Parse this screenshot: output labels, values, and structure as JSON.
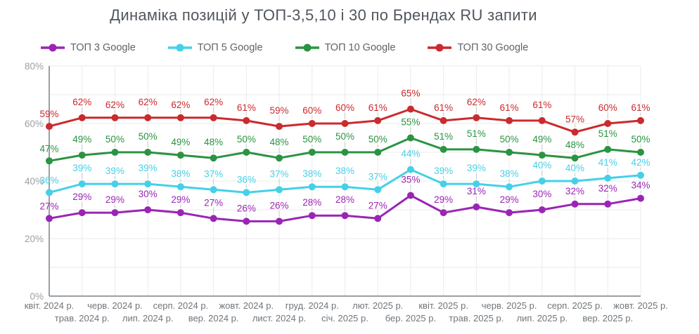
{
  "page": {
    "title": "Динаміка позицій у ТОП-3,5,10 і 30 по Брендах RU запити"
  },
  "legend": {
    "items": [
      {
        "label": "ТОП 3 Google",
        "color": "#9a25b5"
      },
      {
        "label": "ТОП 5 Google",
        "color": "#45d0e8"
      },
      {
        "label": "ТОП 10 Google",
        "color": "#2a9441"
      },
      {
        "label": "ТОП 30 Google",
        "color": "#cb2a2e"
      }
    ]
  },
  "chart_data": {
    "type": "line",
    "title": "Динаміка позицій у ТОП-3,5,10 і 30 по Брендах RU запити",
    "xlabel": "",
    "ylabel": "",
    "ylim": [
      0,
      80
    ],
    "y_tick_labels": [
      "0%",
      "20%",
      "40%",
      "60%",
      "80%"
    ],
    "y_minor_grid_step": 10,
    "grid": true,
    "legend_position": "top",
    "value_label_suffix": "%",
    "categories": [
      "квіт. 2024 р.",
      "трав. 2024 р.",
      "черв. 2024 р.",
      "лип. 2024 р.",
      "серп. 2024 р.",
      "вер. 2024 р.",
      "жовт. 2024 р.",
      "лист. 2024 р.",
      "груд. 2024 р.",
      "січ. 2025 р.",
      "лют. 2025 р.",
      "бер. 2025 р.",
      "квіт. 2025 р.",
      "трав. 2025 р.",
      "черв. 2025 р.",
      "лип. 2025 р.",
      "серп. 2025 р.",
      "вер. 2025 р.",
      "жовт. 2025 р."
    ],
    "series": [
      {
        "name": "ТОП 3 Google",
        "color": "#9a25b5",
        "values": [
          27,
          29,
          29,
          30,
          29,
          27,
          26,
          26,
          28,
          28,
          27,
          35,
          29,
          31,
          29,
          30,
          32,
          32,
          34
        ]
      },
      {
        "name": "ТОП 5 Google",
        "color": "#45d0e8",
        "values": [
          36,
          39,
          39,
          39,
          38,
          37,
          36,
          37,
          38,
          38,
          37,
          44,
          39,
          39,
          38,
          40,
          40,
          41,
          42
        ]
      },
      {
        "name": "ТОП 10 Google",
        "color": "#2a9441",
        "values": [
          47,
          49,
          50,
          50,
          49,
          48,
          50,
          48,
          50,
          50,
          50,
          55,
          51,
          51,
          50,
          49,
          48,
          51,
          50
        ]
      },
      {
        "name": "ТОП 30 Google",
        "color": "#cb2a2e",
        "values": [
          59,
          62,
          62,
          62,
          62,
          62,
          61,
          59,
          60,
          60,
          61,
          65,
          61,
          62,
          61,
          61,
          57,
          60,
          61
        ]
      }
    ]
  }
}
